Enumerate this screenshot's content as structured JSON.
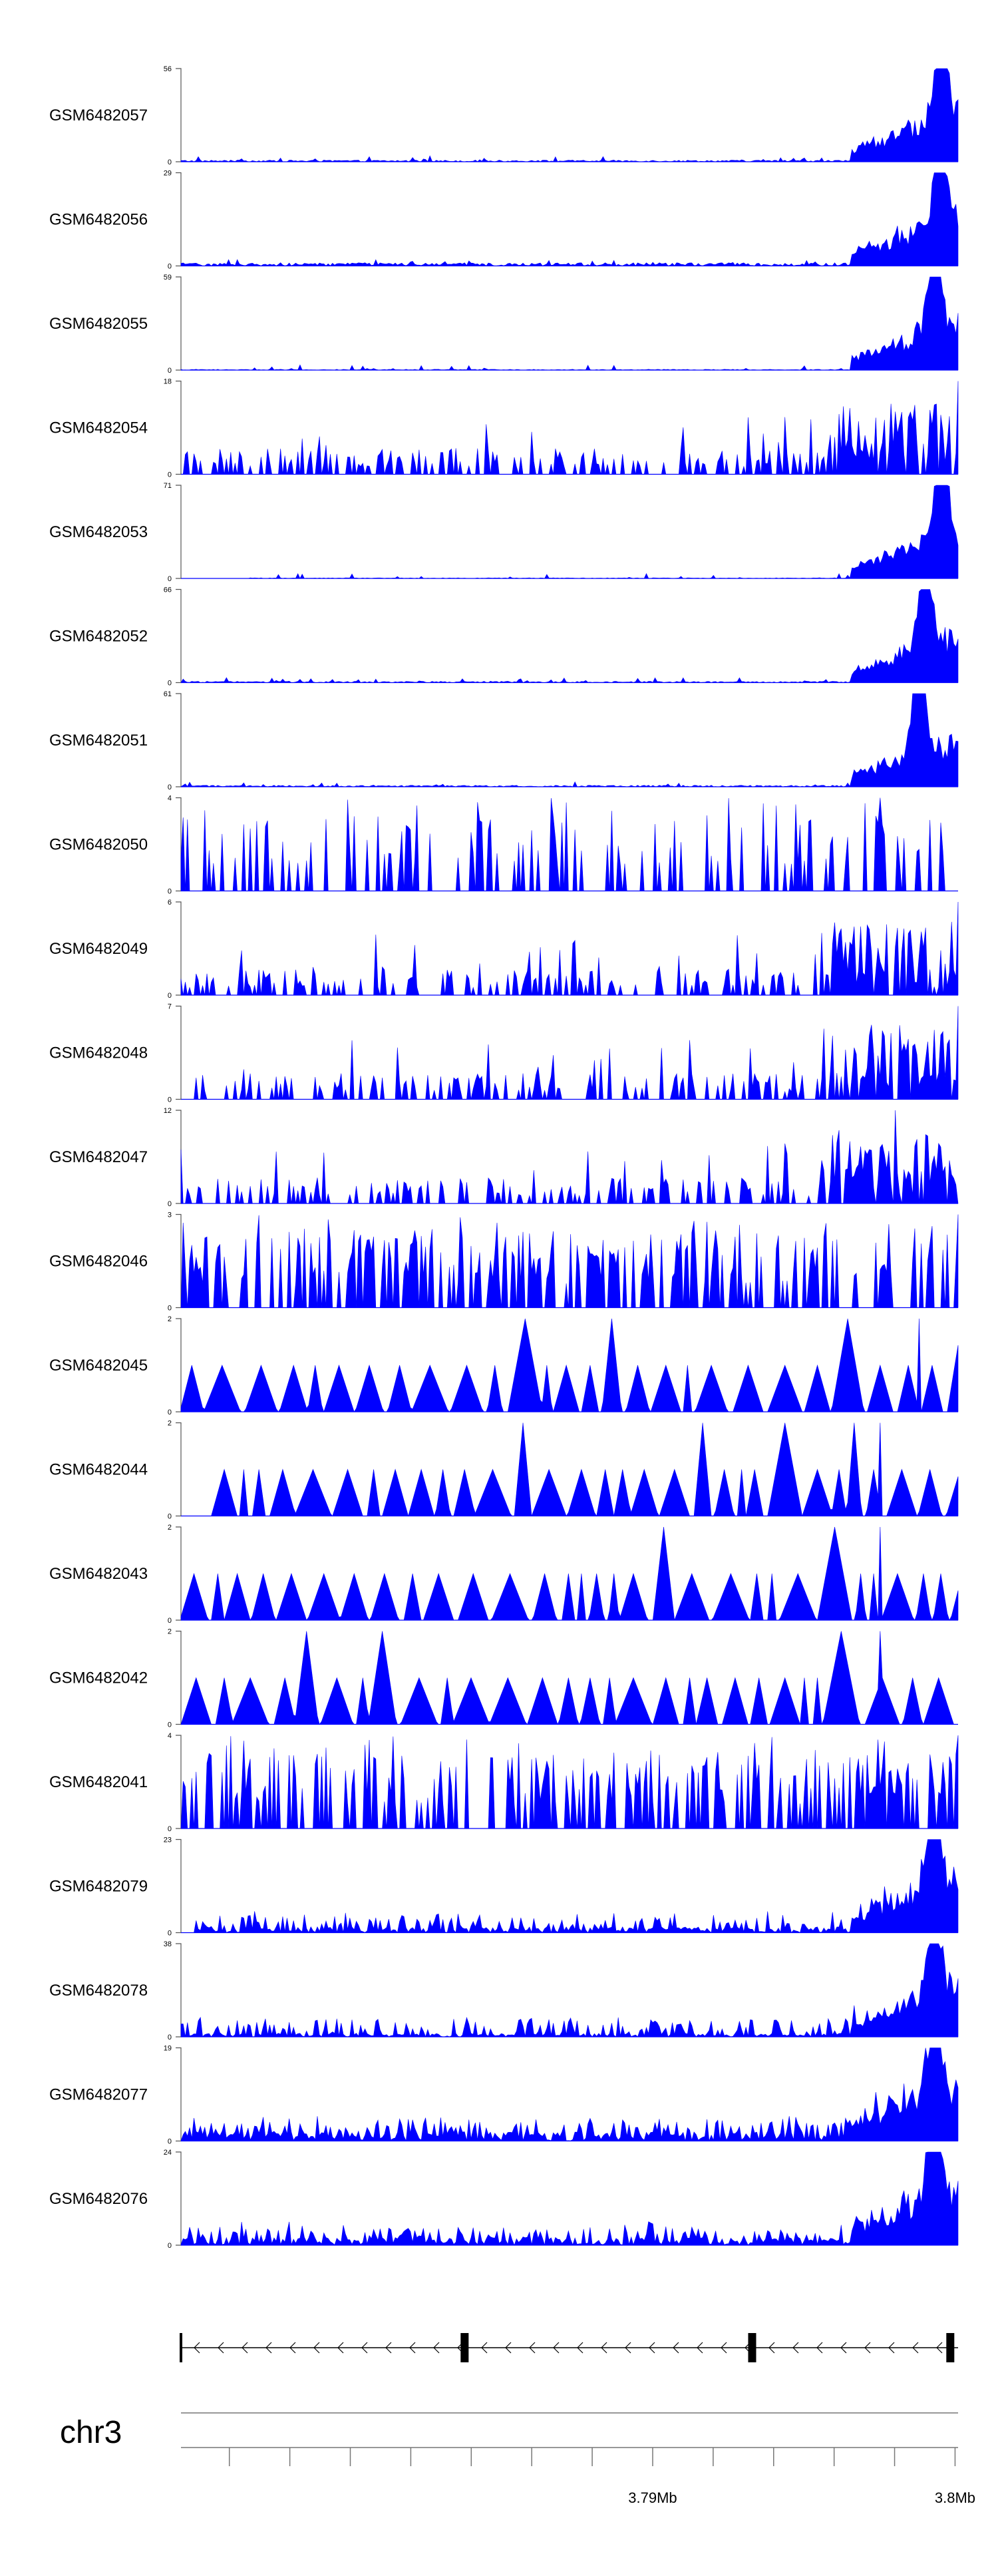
{
  "chart_data": {
    "type": "area",
    "title": "",
    "chromosome": "chr3",
    "x_axis": {
      "tick_labels": [
        "3.79Mb",
        "3.8Mb"
      ],
      "region_start_mb": 3.7744,
      "region_end_mb": 3.8001
    },
    "tracks": [
      {
        "name": "GSM6482057",
        "ymax": 56,
        "ymin": 0,
        "profile": "late-peak",
        "baseline": 1.0,
        "peak_fraction": 0.98
      },
      {
        "name": "GSM6482056",
        "ymax": 29,
        "ymin": 0,
        "profile": "late-peak",
        "baseline": 1.0,
        "peak_fraction": 0.98
      },
      {
        "name": "GSM6482055",
        "ymax": 59,
        "ymin": 0,
        "profile": "late-peak",
        "baseline": 0.5,
        "peak_fraction": 0.97
      },
      {
        "name": "GSM6482054",
        "ymax": 18,
        "ymin": 0,
        "profile": "spiky-late",
        "baseline": 1.5,
        "peak_fraction": 1.0
      },
      {
        "name": "GSM6482053",
        "ymax": 71,
        "ymin": 0,
        "profile": "late-peak",
        "baseline": 0.5,
        "peak_fraction": 0.98,
        "start_fraction": 0.09
      },
      {
        "name": "GSM6482052",
        "ymax": 66,
        "ymin": 0,
        "profile": "late-peak",
        "baseline": 1.0,
        "peak_fraction": 0.96
      },
      {
        "name": "GSM6482051",
        "ymax": 61,
        "ymin": 0,
        "profile": "late-peak",
        "baseline": 1.0,
        "peak_fraction": 0.95
      },
      {
        "name": "GSM6482050",
        "ymax": 4,
        "ymin": 0,
        "profile": "sparse-spikes",
        "baseline": 0,
        "peak_fraction": 0.9
      },
      {
        "name": "GSM6482049",
        "ymax": 6,
        "ymin": 0,
        "profile": "spiky-late",
        "baseline": 0.5,
        "peak_fraction": 1.0
      },
      {
        "name": "GSM6482048",
        "ymax": 7,
        "ymin": 0,
        "profile": "spiky-late",
        "baseline": 0.5,
        "peak_fraction": 1.0,
        "start_fraction": 0.02
      },
      {
        "name": "GSM6482047",
        "ymax": 12,
        "ymin": 0,
        "profile": "spiky-late",
        "baseline": 0.5,
        "peak_fraction": 0.92
      },
      {
        "name": "GSM6482046",
        "ymax": 3,
        "ymin": 0,
        "profile": "dense-spikes",
        "baseline": 0,
        "peak_fraction": 1.0
      },
      {
        "name": "GSM6482045",
        "ymax": 2,
        "ymin": 0,
        "profile": "triangles",
        "baseline": 0,
        "peak_fraction": 0.95
      },
      {
        "name": "GSM6482044",
        "ymax": 2,
        "ymin": 0,
        "profile": "triangles",
        "baseline": 0,
        "peak_fraction": 0.9,
        "start_fraction": 0.04
      },
      {
        "name": "GSM6482043",
        "ymax": 2,
        "ymin": 0,
        "profile": "triangles",
        "baseline": 0,
        "peak_fraction": 0.9
      },
      {
        "name": "GSM6482042",
        "ymax": 2,
        "ymin": 0,
        "profile": "triangles",
        "baseline": 0,
        "peak_fraction": 0.9
      },
      {
        "name": "GSM6482041",
        "ymax": 4,
        "ymin": 0,
        "profile": "dense-spikes",
        "baseline": 0,
        "peak_fraction": 1.0
      },
      {
        "name": "GSM6482079",
        "ymax": 23,
        "ymin": 0,
        "profile": "late-peak-noisy",
        "baseline": 1.5,
        "peak_fraction": 0.97,
        "start_fraction": 0.02
      },
      {
        "name": "GSM6482078",
        "ymax": 38,
        "ymin": 0,
        "profile": "late-peak-noisy",
        "baseline": 1.5,
        "peak_fraction": 0.97
      },
      {
        "name": "GSM6482077",
        "ymax": 19,
        "ymin": 0,
        "profile": "late-peak-noisy",
        "baseline": 2.0,
        "peak_fraction": 0.97
      },
      {
        "name": "GSM6482076",
        "ymax": 24,
        "ymin": 0,
        "profile": "late-peak-noisy",
        "baseline": 2.0,
        "peak_fraction": 0.97
      }
    ],
    "gene_track": {
      "strand": "-",
      "exon_fractions": [
        0.0,
        0.365,
        0.735,
        0.99
      ]
    }
  }
}
